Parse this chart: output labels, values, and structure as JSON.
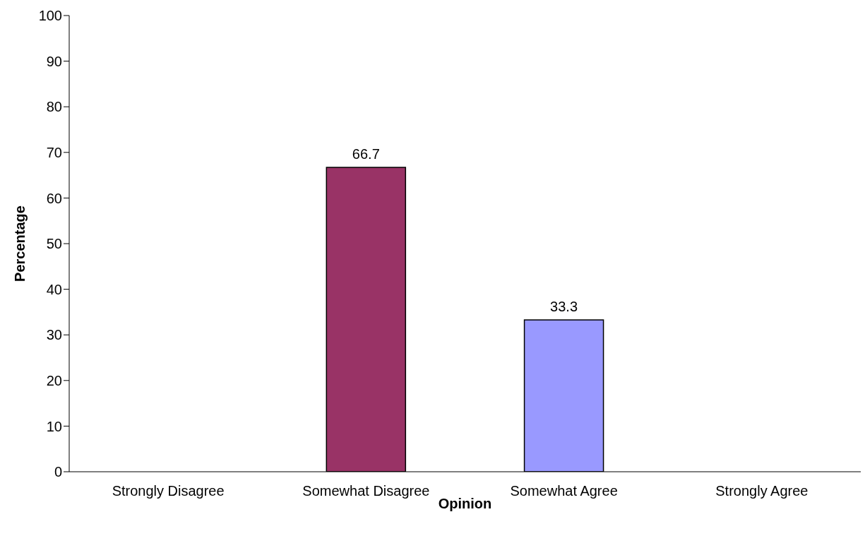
{
  "chart_data": {
    "type": "bar",
    "xlabel": "Opinion",
    "ylabel": "Percentage",
    "categories": [
      "Strongly Disagree",
      "Somewhat Disagree",
      "Somewhat Agree",
      "Strongly Agree"
    ],
    "values": [
      0,
      66.7,
      33.3,
      0
    ],
    "colors": [
      "#9999ff",
      "#993366",
      "#9999ff",
      "#993366"
    ],
    "value_labels": [
      null,
      "66.7",
      "33.3",
      null
    ],
    "ylim": [
      0,
      100
    ],
    "yticks": [
      0,
      10,
      20,
      30,
      40,
      50,
      60,
      70,
      80,
      90,
      100
    ],
    "grid": false,
    "legend": false
  }
}
